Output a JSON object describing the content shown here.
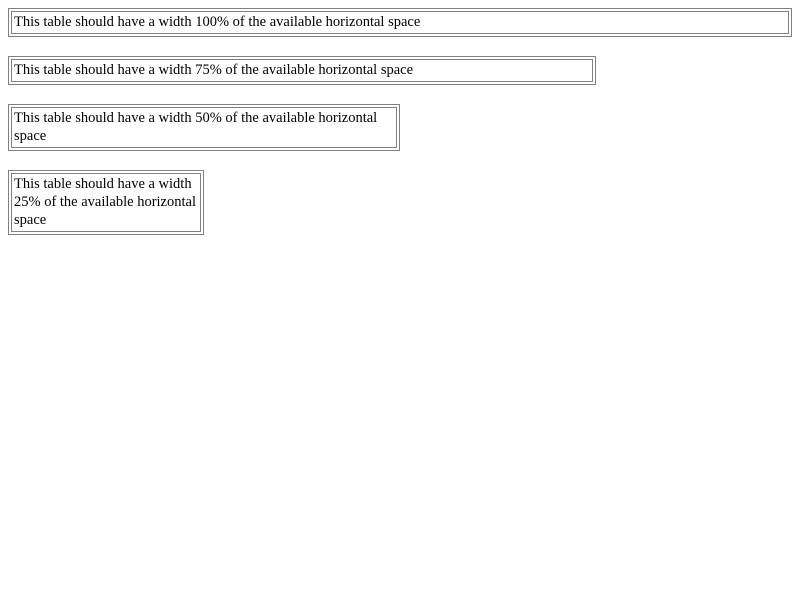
{
  "tables": [
    {
      "text": "This table should have a width 100% of the available horizontal space"
    },
    {
      "text": "This table should have a width 75% of the available horizontal space"
    },
    {
      "text": "This table should have a width 50% of the available horizontal space"
    },
    {
      "text": "This table should have a width 25% of the available horizontal space"
    }
  ]
}
